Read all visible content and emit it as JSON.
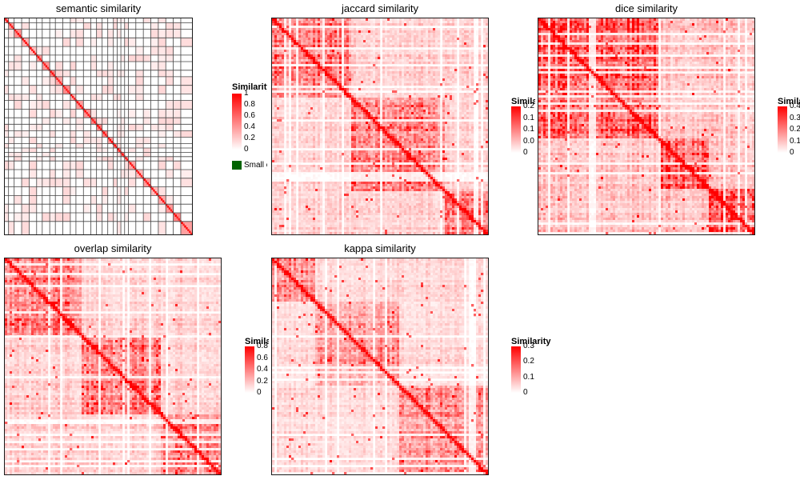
{
  "colors": {
    "high": "#ff0000",
    "low": "#ffffff",
    "border": "#1a1a1a",
    "small_cluster": "#006400"
  },
  "legend_title": "Similarity",
  "small_cluster_label": "Small clusters",
  "chart_data": [
    {
      "id": "semantic",
      "type": "heatmap",
      "title": "semantic similarity",
      "value_range": [
        0,
        1
      ],
      "ticks": [
        "1",
        "0.8",
        "0.6",
        "0.4",
        "0.2",
        "0"
      ],
      "has_small_cluster_legend": true
    },
    {
      "id": "jaccard",
      "type": "heatmap",
      "title": "jaccard similarity",
      "value_range": [
        0,
        0.2
      ],
      "ticks": [
        "0.2",
        "0.1",
        "0.1",
        "0.0",
        "0"
      ]
    },
    {
      "id": "dice",
      "type": "heatmap",
      "title": "dice similarity",
      "value_range": [
        0,
        0.4
      ],
      "ticks": [
        "0.4",
        "0.3",
        "0.2",
        "0.1",
        "0"
      ]
    },
    {
      "id": "overlap",
      "type": "heatmap",
      "title": "overlap similarity",
      "value_range": [
        0,
        0.8
      ],
      "ticks": [
        "0.8",
        "0.6",
        "0.4",
        "0.2",
        "0"
      ]
    },
    {
      "id": "kappa",
      "type": "heatmap",
      "title": "kappa similarity",
      "value_range": [
        0,
        0.3
      ],
      "ticks": [
        "0.3",
        "0.2",
        "0.1",
        "0"
      ]
    }
  ]
}
